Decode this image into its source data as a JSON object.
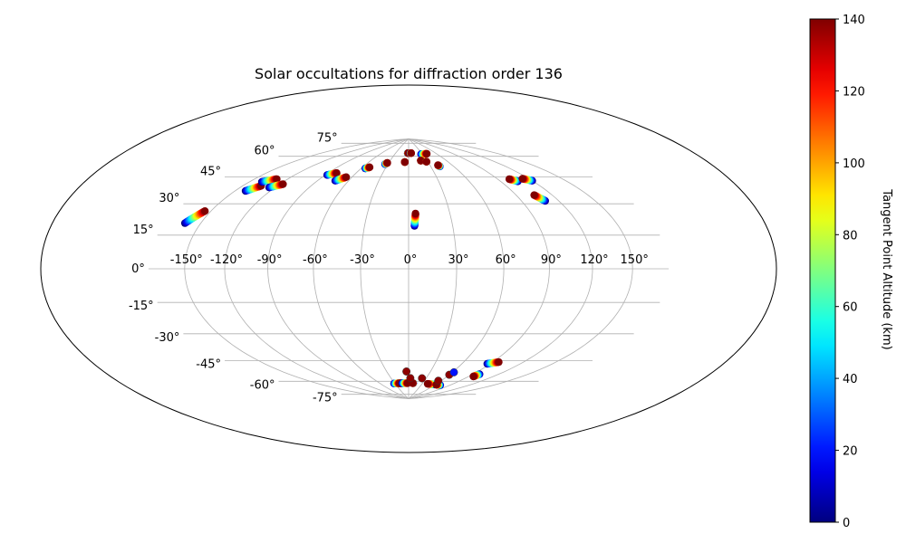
{
  "chart_data": {
    "type": "scatter",
    "projection": "hammer",
    "title": "Solar occultations for diffraction order 136",
    "grid": true,
    "lon_ticks": [
      -150,
      -120,
      -90,
      -60,
      -30,
      0,
      30,
      60,
      90,
      120,
      150
    ],
    "lat_ticks": [
      -75,
      -60,
      -45,
      -30,
      -15,
      0,
      15,
      30,
      45,
      60,
      75
    ],
    "colorbar": {
      "label": "Tangent Point Altitude (km)",
      "colormap": "jet",
      "min": 0,
      "max": 140,
      "ticks": [
        0,
        20,
        40,
        60,
        80,
        100,
        120,
        140
      ]
    },
    "tracks": [
      {
        "lon_start": -163,
        "lat_start": 22,
        "lon_end": -155,
        "lat_end": 29
      },
      {
        "lon_start": -141,
        "lat_start": 42,
        "lon_end": -134,
        "lat_end": 46
      },
      {
        "lon_start": -139,
        "lat_start": 48,
        "lon_end": -130,
        "lat_end": 51
      },
      {
        "lon_start": -125,
        "lat_start": 46,
        "lon_end": -117,
        "lat_end": 49
      },
      {
        "lon_start": -88,
        "lat_start": 58,
        "lon_end": -81,
        "lat_end": 60
      },
      {
        "lon_start": -73,
        "lat_start": 55,
        "lon_end": -66,
        "lat_end": 58
      },
      {
        "lon_start": -55,
        "lat_start": 65,
        "lon_end": -51,
        "lat_end": 66
      },
      {
        "lon_start": -34,
        "lat_start": 69,
        "lon_end": -32,
        "lat_end": 70
      },
      {
        "lon_start": -6,
        "lat_start": 71,
        "lon_end": -6,
        "lat_end": 71
      },
      {
        "lon_start": -2,
        "lat_start": 78,
        "lon_end": -1,
        "lat_end": 78
      },
      {
        "lon_start": 4,
        "lat_start": 78,
        "lon_end": 6,
        "lat_end": 78
      },
      {
        "lon_start": 27,
        "lat_start": 77,
        "lon_end": 40,
        "lat_end": 77
      },
      {
        "lon_start": 20,
        "lat_start": 72,
        "lon_end": 20,
        "lat_end": 72
      },
      {
        "lon_start": 28,
        "lat_start": 71,
        "lon_end": 28,
        "lat_end": 71
      },
      {
        "lon_start": 42,
        "lat_start": 67,
        "lon_end": 41,
        "lat_end": 68
      },
      {
        "lon_start": 106,
        "lat_start": 52,
        "lon_end": 101,
        "lat_end": 54
      },
      {
        "lon_start": 120,
        "lat_start": 51,
        "lon_end": 114,
        "lat_end": 53
      },
      {
        "lon_start": 109,
        "lat_start": 39,
        "lon_end": 105,
        "lat_end": 43
      },
      {
        "lon_start": 4,
        "lat_start": 27,
        "lon_end": 5,
        "lat_end": 35
      },
      {
        "lon_start": -26,
        "lat_start": -77,
        "lon_end": -16,
        "lat_end": -77
      },
      {
        "lon_start": -32,
        "lat_start": -77,
        "lon_end": -20,
        "lat_end": -77
      },
      {
        "lon_start": -14,
        "lat_start": -77,
        "lon_end": -2,
        "lat_end": -77
      },
      {
        "lon_start": 10,
        "lat_start": -77,
        "lon_end": 9,
        "lat_end": -77
      },
      {
        "lon_start": 58,
        "lat_start": -77,
        "lon_end": 42,
        "lat_end": -77
      },
      {
        "lon_start": 72,
        "lat_start": -77,
        "lon_end": 62,
        "lat_end": -77
      },
      {
        "lon_start": 98,
        "lat_start": -66,
        "lon_end": 96,
        "lat_end": -68
      },
      {
        "lon_start": 87,
        "lat_start": -59,
        "lon_end": 96,
        "lat_end": -57
      }
    ],
    "isolated_points": [
      {
        "lon": -3,
        "lat": -68,
        "alt_km": 138
      },
      {
        "lon": 3,
        "lat": -73,
        "alt_km": 138
      },
      {
        "lon": 23,
        "lat": -73,
        "alt_km": 138
      },
      {
        "lon": 55,
        "lat": -74,
        "alt_km": 138
      },
      {
        "lon": 60,
        "lat": -69,
        "alt_km": 138
      },
      {
        "lon": 62,
        "lat": -67,
        "alt_km": 20
      }
    ]
  }
}
